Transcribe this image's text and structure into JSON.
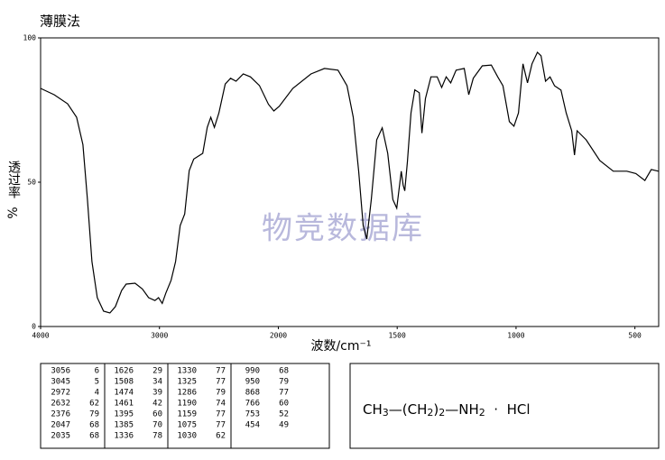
{
  "chart_data": {
    "type": "line",
    "title": "薄膜法",
    "xlabel": "波数/cm⁻¹",
    "ylabel": "透过率",
    "ylabel_unit": "%",
    "watermark": "物竞数据库",
    "xlim": [
      4000,
      400
    ],
    "x_scale_break": {
      "at": 2000,
      "factor": 2
    },
    "ylim": [
      0,
      100
    ],
    "xticks": [
      4000,
      3000,
      2000,
      1500,
      1000,
      500
    ],
    "yticks": [
      0,
      50,
      100
    ],
    "series": [
      {
        "name": "spectrum",
        "color": "#000000",
        "x": [
          4000,
          3886,
          3773,
          3697,
          3644,
          3606,
          3568,
          3523,
          3470,
          3417,
          3371,
          3318,
          3280,
          3205,
          3144,
          3091,
          3038,
          3008,
          2977,
          2947,
          2902,
          2864,
          2826,
          2788,
          2750,
          2712,
          2636,
          2598,
          2568,
          2538,
          2500,
          2447,
          2402,
          2356,
          2295,
          2235,
          2159,
          2083,
          2038,
          1996,
          1939,
          1863,
          1806,
          1749,
          1711,
          1685,
          1662,
          1643,
          1628,
          1609,
          1586,
          1563,
          1540,
          1518,
          1502,
          1483,
          1475,
          1468,
          1457,
          1442,
          1426,
          1407,
          1396,
          1381,
          1358,
          1332,
          1313,
          1294,
          1275,
          1252,
          1218,
          1199,
          1180,
          1142,
          1104,
          1077,
          1055,
          1028,
          1009,
          990,
          971,
          952,
          933,
          910,
          895,
          876,
          857,
          838,
          811,
          789,
          766,
          754,
          743,
          705,
          648,
          591,
          534,
          496,
          458,
          431,
          401
        ],
        "values": [
          82.5,
          80.3,
          77.2,
          72.5,
          63,
          44,
          22.5,
          10,
          5.3,
          4.7,
          6.9,
          12.5,
          14.7,
          15,
          13,
          10,
          9,
          10,
          8,
          11.5,
          16,
          22.5,
          35,
          39,
          54,
          58,
          60,
          69,
          72.5,
          69,
          74,
          84,
          86,
          85,
          87.5,
          86.5,
          83.5,
          77,
          74.7,
          76.3,
          82.5,
          87.5,
          89.4,
          88.8,
          83.4,
          72.5,
          53.8,
          35,
          30.3,
          44,
          64.7,
          68.8,
          60,
          44,
          41,
          53.8,
          49,
          47,
          57,
          74,
          82,
          81,
          67,
          79,
          86.5,
          86.5,
          82.8,
          86.5,
          84.4,
          88.8,
          89.4,
          80.3,
          86,
          90.3,
          90.6,
          86.5,
          83.4,
          71,
          69.4,
          74,
          91,
          84.4,
          91,
          95,
          93.8,
          85,
          86.5,
          83.4,
          81.9,
          74,
          67.8,
          59.4,
          67.8,
          64.7,
          57.5,
          53.8,
          53.8,
          53,
          50.6,
          54.4,
          53.8
        ]
      }
    ]
  },
  "peak_table": [
    [
      [
        3056,
        6
      ],
      [
        3045,
        5
      ],
      [
        2972,
        4
      ],
      [
        2632,
        62
      ],
      [
        2376,
        79
      ],
      [
        2047,
        68
      ],
      [
        2035,
        68
      ]
    ],
    [
      [
        1626,
        29
      ],
      [
        1508,
        34
      ],
      [
        1474,
        39
      ],
      [
        1461,
        42
      ],
      [
        1395,
        60
      ],
      [
        1385,
        70
      ],
      [
        1336,
        78
      ]
    ],
    [
      [
        1330,
        77
      ],
      [
        1325,
        77
      ],
      [
        1286,
        79
      ],
      [
        1190,
        74
      ],
      [
        1159,
        77
      ],
      [
        1075,
        77
      ],
      [
        1030,
        62
      ]
    ],
    [
      [
        990,
        68
      ],
      [
        950,
        79
      ],
      [
        868,
        77
      ],
      [
        766,
        60
      ],
      [
        753,
        52
      ],
      [
        454,
        49
      ]
    ]
  ],
  "formula": [
    "CH",
    "3",
    "—(CH",
    "2",
    ")",
    "2",
    "—NH",
    "2",
    "  ·  HCl"
  ]
}
